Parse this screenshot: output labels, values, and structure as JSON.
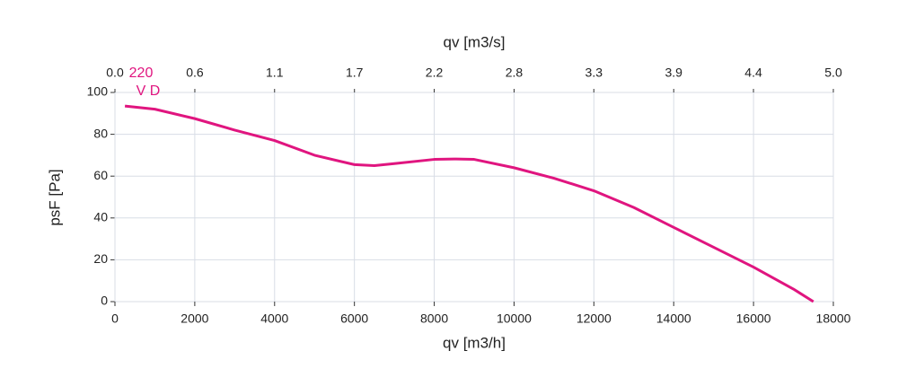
{
  "chart_data": {
    "type": "line",
    "x_label": "qv [m3/h]",
    "y_label": "psF [Pa]",
    "x2_label": "qv [m3/s]",
    "annotations": [
      "220",
      "V D"
    ],
    "annotation_color": "#e0157f",
    "x": [
      250,
      1000,
      2000,
      3000,
      4000,
      5000,
      6000,
      6500,
      7000,
      8000,
      8500,
      9000,
      10000,
      11000,
      12000,
      13000,
      14000,
      15000,
      16000,
      17000,
      17500
    ],
    "series": [
      {
        "color": "#e0157f",
        "values": [
          93.5,
          92,
          87.5,
          82,
          77,
          70,
          65.5,
          65,
          66,
          68,
          68.2,
          68,
          64,
          59,
          53,
          45,
          35.5,
          26,
          16.5,
          6,
          0
        ]
      }
    ],
    "xlim": [
      0,
      18000
    ],
    "xticks": [
      0,
      2000,
      4000,
      6000,
      8000,
      10000,
      12000,
      14000,
      16000,
      18000
    ],
    "ylim": [
      0,
      100
    ],
    "yticks": [
      0,
      20,
      40,
      60,
      80,
      100
    ],
    "x2lim": [
      0,
      5
    ],
    "x2ticks": [
      {
        "value": 0,
        "label": "0.0"
      },
      {
        "value": 0.556,
        "label": "0.6"
      },
      {
        "value": 1.111,
        "label": "1.1"
      },
      {
        "value": 1.667,
        "label": "1.7"
      },
      {
        "value": 2.222,
        "label": "2.2"
      },
      {
        "value": 2.778,
        "label": "2.8"
      },
      {
        "value": 3.333,
        "label": "3.3"
      },
      {
        "value": 3.889,
        "label": "3.9"
      },
      {
        "value": 4.444,
        "label": "4.4"
      },
      {
        "value": 5,
        "label": "5.0"
      }
    ],
    "grid": true
  }
}
